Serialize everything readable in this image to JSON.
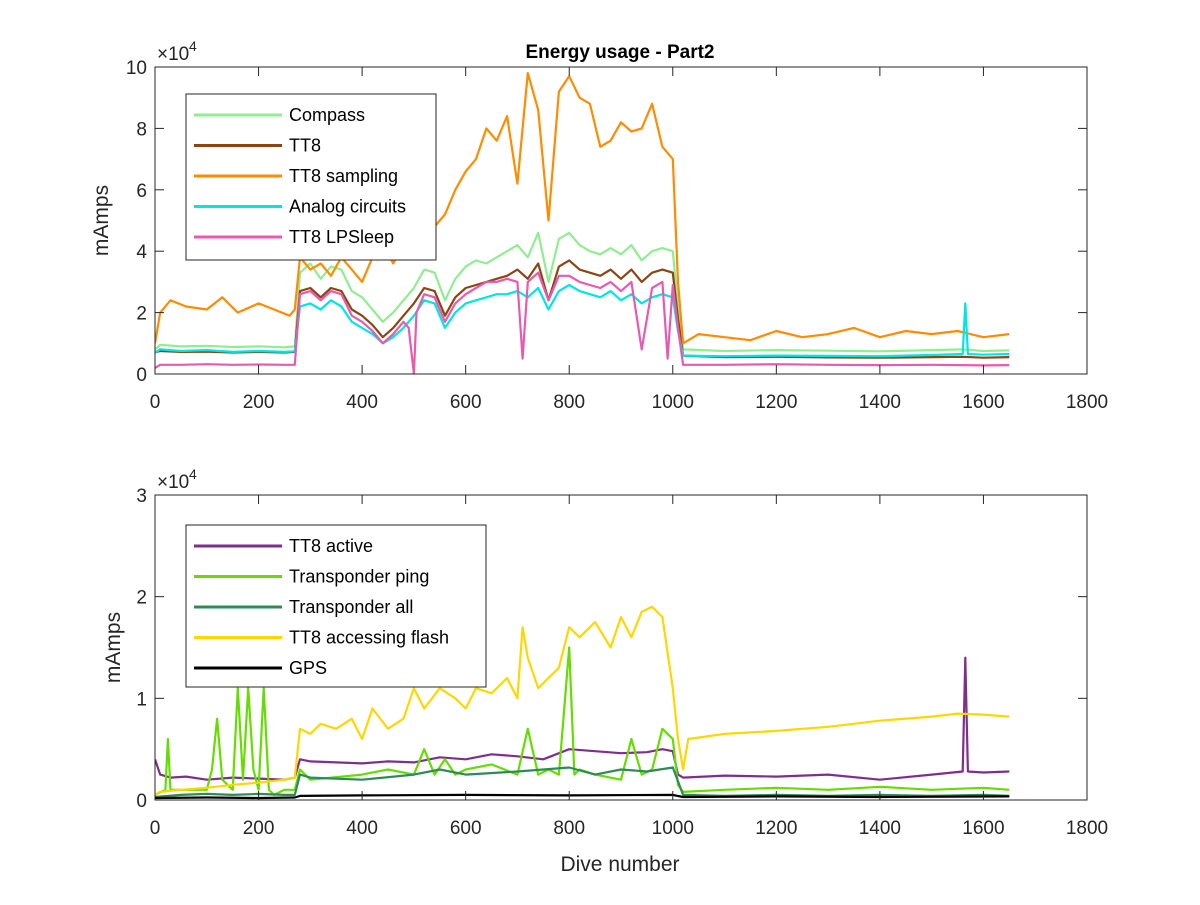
{
  "figure": {
    "xlabel": "Dive number"
  },
  "chart_data": [
    {
      "type": "line",
      "title": "Energy usage - Part2",
      "xlabel": "",
      "ylabel": "mAmps",
      "xlim": [
        0,
        1800
      ],
      "ylim": [
        0,
        100000
      ],
      "x_ticks": [
        0,
        200,
        400,
        600,
        800,
        1000,
        1200,
        1400,
        1600,
        1800
      ],
      "y_ticks": [
        0,
        2,
        4,
        6,
        8,
        10
      ],
      "y_multiplier": "×10",
      "y_multiplier_exp": "4",
      "legend_position": "top-left",
      "grid": false,
      "series": [
        {
          "name": "Compass",
          "color": "#90EE90",
          "x": [
            0,
            10,
            50,
            100,
            150,
            200,
            250,
            270,
            280,
            300,
            320,
            340,
            360,
            380,
            400,
            420,
            440,
            460,
            480,
            500,
            520,
            540,
            560,
            580,
            600,
            620,
            640,
            660,
            680,
            700,
            720,
            740,
            760,
            780,
            800,
            820,
            840,
            860,
            880,
            900,
            920,
            940,
            960,
            980,
            1000,
            1010,
            1020,
            1100,
            1200,
            1300,
            1400,
            1500,
            1560,
            1600,
            1650
          ],
          "y": [
            8000,
            9500,
            9000,
            9200,
            8800,
            9000,
            8700,
            9000,
            33000,
            36000,
            31000,
            35000,
            34000,
            27000,
            25000,
            21000,
            17000,
            20000,
            24000,
            28000,
            34000,
            33000,
            24000,
            31000,
            35000,
            37000,
            36000,
            38000,
            40000,
            42000,
            38000,
            46000,
            30000,
            44000,
            46000,
            42000,
            40000,
            39000,
            41000,
            39000,
            42000,
            37000,
            40000,
            41000,
            40000,
            22000,
            8000,
            7500,
            7800,
            7600,
            7400,
            7800,
            8000,
            7500,
            7700
          ]
        },
        {
          "name": "TT8",
          "color": "#8B4513",
          "x": [
            0,
            10,
            50,
            100,
            150,
            200,
            250,
            270,
            280,
            300,
            320,
            340,
            360,
            380,
            400,
            420,
            440,
            460,
            480,
            500,
            520,
            540,
            560,
            580,
            600,
            620,
            640,
            660,
            680,
            700,
            720,
            740,
            760,
            780,
            800,
            820,
            840,
            860,
            880,
            900,
            920,
            940,
            960,
            980,
            1000,
            1010,
            1020,
            1100,
            1200,
            1300,
            1400,
            1500,
            1560,
            1600,
            1650
          ],
          "y": [
            7000,
            7500,
            7200,
            7300,
            7000,
            7200,
            7000,
            7200,
            27000,
            28000,
            25000,
            28000,
            27000,
            21000,
            19000,
            16000,
            12000,
            15000,
            19000,
            23000,
            28000,
            27000,
            19000,
            25000,
            28000,
            29000,
            30000,
            31000,
            32000,
            34000,
            31000,
            36000,
            24000,
            35000,
            37000,
            34000,
            33000,
            32000,
            34000,
            31000,
            34000,
            30000,
            33000,
            34000,
            33000,
            18000,
            6000,
            5500,
            5600,
            5400,
            5300,
            5500,
            5600,
            5300,
            5500
          ]
        },
        {
          "name": "TT8 sampling",
          "color": "#FF8C00",
          "x": [
            0,
            10,
            30,
            60,
            100,
            130,
            160,
            200,
            230,
            260,
            270,
            280,
            300,
            320,
            340,
            360,
            380,
            400,
            420,
            440,
            460,
            480,
            500,
            520,
            540,
            560,
            580,
            600,
            620,
            640,
            660,
            680,
            700,
            710,
            720,
            740,
            760,
            780,
            800,
            820,
            840,
            860,
            880,
            900,
            920,
            940,
            960,
            980,
            1000,
            1010,
            1020,
            1050,
            1100,
            1150,
            1200,
            1250,
            1300,
            1350,
            1400,
            1450,
            1500,
            1550,
            1600,
            1650
          ],
          "y": [
            10000,
            20000,
            24000,
            22000,
            21000,
            25000,
            20000,
            23000,
            21000,
            19000,
            21000,
            38000,
            34000,
            36000,
            32000,
            38000,
            34000,
            30000,
            38000,
            43000,
            36000,
            42000,
            44000,
            58000,
            48000,
            52000,
            60000,
            66000,
            70000,
            80000,
            76000,
            84000,
            62000,
            80000,
            98000,
            86000,
            50000,
            92000,
            97000,
            90000,
            88000,
            74000,
            76000,
            82000,
            79000,
            80000,
            88000,
            74000,
            70000,
            30000,
            10000,
            13000,
            12000,
            11000,
            14000,
            12000,
            13000,
            15000,
            12000,
            14000,
            13000,
            14000,
            12000,
            13000
          ]
        },
        {
          "name": "Analog circuits",
          "color": "#00E5E5",
          "x": [
            0,
            10,
            50,
            100,
            150,
            200,
            250,
            270,
            280,
            300,
            320,
            340,
            360,
            380,
            400,
            420,
            440,
            460,
            480,
            500,
            520,
            540,
            560,
            580,
            600,
            620,
            640,
            660,
            680,
            700,
            720,
            740,
            760,
            780,
            800,
            820,
            840,
            860,
            880,
            900,
            920,
            940,
            960,
            980,
            1000,
            1010,
            1020,
            1100,
            1200,
            1300,
            1400,
            1500,
            1560,
            1565,
            1570,
            1600,
            1650
          ],
          "y": [
            7000,
            8000,
            7500,
            7800,
            7200,
            7500,
            7200,
            7400,
            22000,
            23000,
            21000,
            24000,
            22000,
            17000,
            15000,
            13000,
            10000,
            12000,
            15000,
            19000,
            24000,
            23000,
            15000,
            20000,
            23000,
            24000,
            25000,
            26000,
            26000,
            27000,
            25000,
            28000,
            21000,
            27000,
            29000,
            27000,
            26000,
            25000,
            27000,
            24000,
            26000,
            23000,
            25000,
            26000,
            25000,
            14000,
            6000,
            5800,
            6000,
            5900,
            5800,
            6200,
            6500,
            23000,
            6500,
            6300,
            6500
          ]
        },
        {
          "name": "TT8 LPSleep",
          "color": "#E75AB0",
          "x": [
            0,
            10,
            50,
            100,
            150,
            200,
            250,
            270,
            280,
            300,
            320,
            340,
            360,
            380,
            400,
            420,
            440,
            460,
            480,
            490,
            500,
            505,
            520,
            540,
            560,
            580,
            600,
            620,
            640,
            660,
            680,
            700,
            710,
            720,
            740,
            760,
            780,
            800,
            820,
            840,
            860,
            880,
            900,
            920,
            940,
            960,
            980,
            990,
            1000,
            1010,
            1020,
            1100,
            1200,
            1300,
            1400,
            1500,
            1600,
            1650
          ],
          "y": [
            2000,
            3000,
            3000,
            3200,
            3000,
            3100,
            3000,
            3000,
            26000,
            27000,
            24000,
            27000,
            26000,
            19000,
            17000,
            14000,
            10000,
            13000,
            17000,
            15000,
            0,
            20000,
            26000,
            25000,
            17000,
            23000,
            26000,
            28000,
            30000,
            30000,
            31000,
            30000,
            5000,
            30000,
            33000,
            24000,
            32000,
            32000,
            30000,
            29000,
            28000,
            30000,
            27000,
            30000,
            8000,
            28000,
            30000,
            5000,
            29000,
            15000,
            3000,
            3000,
            3200,
            3000,
            2900,
            3000,
            2800,
            2900
          ]
        }
      ]
    },
    {
      "type": "line",
      "title": "",
      "xlabel": "Dive number",
      "ylabel": "mAmps",
      "xlim": [
        0,
        1800
      ],
      "ylim": [
        0,
        30000
      ],
      "x_ticks": [
        0,
        200,
        400,
        600,
        800,
        1000,
        1200,
        1400,
        1600,
        1800
      ],
      "y_ticks": [
        0,
        1,
        2,
        3
      ],
      "y_multiplier": "×10",
      "y_multiplier_exp": "4",
      "legend_position": "top-left",
      "grid": false,
      "series": [
        {
          "name": "TT8 active",
          "color": "#7E2F8E",
          "x": [
            0,
            10,
            30,
            60,
            100,
            150,
            200,
            250,
            270,
            280,
            300,
            350,
            400,
            450,
            500,
            550,
            600,
            650,
            700,
            750,
            800,
            850,
            900,
            950,
            980,
            1000,
            1010,
            1020,
            1100,
            1200,
            1300,
            1400,
            1500,
            1560,
            1565,
            1570,
            1600,
            1650
          ],
          "y": [
            4000,
            2500,
            2200,
            2300,
            2000,
            2200,
            2100,
            2000,
            2200,
            4000,
            3800,
            3700,
            3600,
            3800,
            3700,
            4200,
            4000,
            4500,
            4300,
            4000,
            5000,
            4800,
            4600,
            4700,
            5000,
            4800,
            2500,
            2200,
            2400,
            2300,
            2500,
            2000,
            2500,
            2800,
            14000,
            2800,
            2700,
            2800
          ]
        },
        {
          "name": "Transponder ping",
          "color": "#66DD00",
          "x": [
            0,
            20,
            25,
            30,
            100,
            110,
            120,
            130,
            150,
            160,
            170,
            180,
            190,
            200,
            210,
            220,
            230,
            250,
            270,
            280,
            300,
            400,
            450,
            500,
            520,
            540,
            560,
            580,
            600,
            650,
            700,
            720,
            740,
            760,
            780,
            800,
            810,
            820,
            850,
            900,
            920,
            940,
            960,
            980,
            1000,
            1010,
            1020,
            1100,
            1200,
            1300,
            1400,
            1500,
            1600,
            1650
          ],
          "y": [
            500,
            1000,
            6000,
            1000,
            1000,
            3000,
            8000,
            2000,
            1000,
            11000,
            2000,
            11000,
            3000,
            1000,
            11000,
            1000,
            500,
            1000,
            1000,
            3000,
            2000,
            2500,
            3000,
            2500,
            5000,
            2500,
            4000,
            2500,
            3000,
            3500,
            2500,
            7000,
            2500,
            3000,
            2500,
            15000,
            2500,
            3000,
            2500,
            2000,
            6000,
            2500,
            3000,
            7000,
            6000,
            1500,
            800,
            1000,
            1200,
            1000,
            1300,
            1000,
            1200,
            1000
          ]
        },
        {
          "name": "Transponder all",
          "color": "#2E8B57",
          "x": [
            0,
            50,
            100,
            150,
            200,
            250,
            270,
            280,
            300,
            400,
            500,
            550,
            600,
            700,
            800,
            850,
            900,
            950,
            1000,
            1020,
            1100,
            1200,
            1300,
            1400,
            1500,
            1600,
            1650
          ],
          "y": [
            300,
            500,
            600,
            500,
            600,
            500,
            500,
            2500,
            2200,
            2000,
            2500,
            3000,
            2500,
            2800,
            3200,
            2500,
            3000,
            2800,
            3200,
            500,
            400,
            500,
            400,
            500,
            400,
            500,
            400
          ]
        },
        {
          "name": "TT8 accessing flash",
          "color": "#FFD700",
          "x": [
            0,
            10,
            50,
            100,
            150,
            200,
            250,
            270,
            280,
            300,
            320,
            350,
            380,
            400,
            420,
            450,
            480,
            500,
            520,
            550,
            580,
            600,
            620,
            650,
            680,
            700,
            710,
            720,
            740,
            760,
            780,
            800,
            820,
            850,
            880,
            900,
            920,
            940,
            960,
            980,
            1000,
            1010,
            1020,
            1030,
            1100,
            1200,
            1300,
            1400,
            1500,
            1550,
            1600,
            1650
          ],
          "y": [
            500,
            800,
            1000,
            1200,
            1500,
            1700,
            2000,
            2200,
            7000,
            6500,
            7500,
            7000,
            8000,
            6000,
            9000,
            7000,
            8000,
            11000,
            9000,
            11000,
            10000,
            9000,
            11000,
            10500,
            12000,
            10000,
            17000,
            14000,
            11000,
            12000,
            13000,
            17000,
            16000,
            17500,
            15000,
            18000,
            16000,
            18500,
            19000,
            18000,
            11000,
            6000,
            3000,
            6000,
            6500,
            6800,
            7200,
            7800,
            8200,
            8500,
            8400,
            8200
          ]
        },
        {
          "name": "GPS",
          "color": "#000000",
          "x": [
            0,
            100,
            200,
            270,
            280,
            400,
            600,
            800,
            1000,
            1020,
            1200,
            1400,
            1650
          ],
          "y": [
            200,
            250,
            200,
            250,
            400,
            450,
            500,
            450,
            500,
            300,
            350,
            300,
            350
          ]
        }
      ]
    }
  ]
}
